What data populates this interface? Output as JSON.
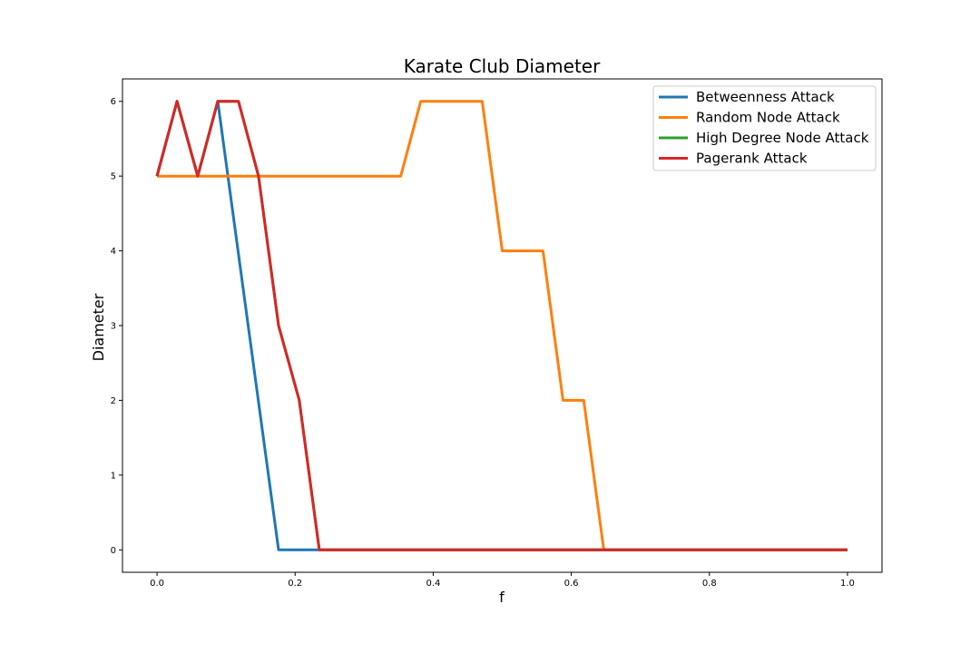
{
  "chart_data": {
    "type": "line",
    "title": "Karate Club Diameter",
    "xlabel": "f",
    "ylabel": "Diameter",
    "xlim": [
      -0.05,
      1.05
    ],
    "ylim": [
      -0.3,
      6.3
    ],
    "xticks": [
      0.0,
      0.2,
      0.4,
      0.6,
      0.8,
      1.0
    ],
    "xtick_labels": [
      "0.0",
      "0.2",
      "0.4",
      "0.6",
      "0.8",
      "1.0"
    ],
    "yticks": [
      0,
      1,
      2,
      3,
      4,
      5,
      6
    ],
    "ytick_labels": [
      "0",
      "1",
      "2",
      "3",
      "4",
      "5",
      "6"
    ],
    "grid": false,
    "legend_position": "top-right",
    "series": [
      {
        "name": "Betweenness Attack",
        "color": "#1f77b4",
        "x": [
          0.0,
          0.029,
          0.059,
          0.088,
          0.176,
          1.0
        ],
        "y": [
          5,
          6,
          5,
          6,
          0,
          0
        ]
      },
      {
        "name": "Random Node Attack",
        "color": "#ff7f0e",
        "x": [
          0.0,
          0.353,
          0.382,
          0.471,
          0.5,
          0.559,
          0.588,
          0.618,
          0.647,
          1.0
        ],
        "y": [
          5,
          5,
          6,
          6,
          4,
          4,
          2,
          2,
          0,
          0
        ]
      },
      {
        "name": "High Degree Node Attack",
        "color": "#2ca02c",
        "x": [
          0.0,
          0.029,
          0.059,
          0.088,
          0.118,
          0.147,
          0.176,
          0.206,
          0.235,
          1.0
        ],
        "y": [
          5,
          6,
          5,
          6,
          6,
          5,
          3,
          2,
          0,
          0
        ]
      },
      {
        "name": "Pagerank Attack",
        "color": "#d62728",
        "x": [
          0.0,
          0.029,
          0.059,
          0.088,
          0.118,
          0.147,
          0.176,
          0.206,
          0.235,
          1.0
        ],
        "y": [
          5,
          6,
          5,
          6,
          6,
          5,
          3,
          2,
          0,
          0
        ]
      }
    ]
  }
}
